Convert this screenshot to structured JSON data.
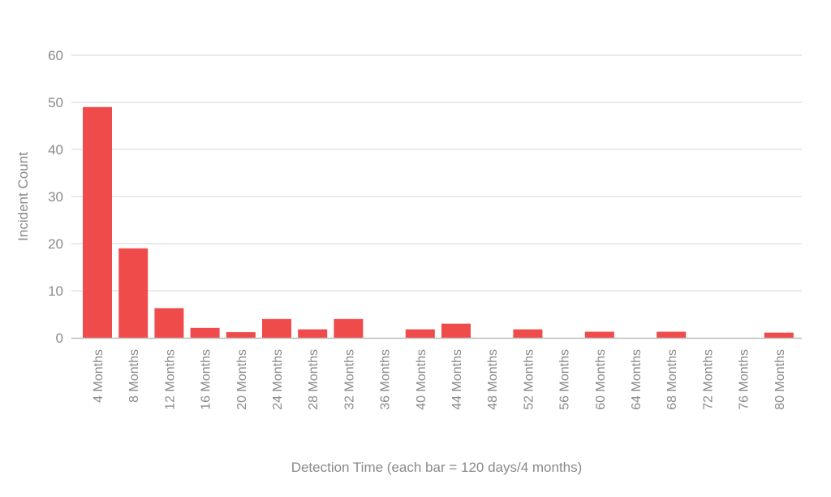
{
  "chart_data": {
    "type": "bar",
    "title": "",
    "xlabel": "Detection Time (each bar = 120 days/4 months)",
    "ylabel": "Incident Count",
    "categories": [
      "4 Months",
      "8 Months",
      "12 Months",
      "16 Months",
      "20 Months",
      "24 Months",
      "28 Months",
      "32 Months",
      "36 Months",
      "40 Months",
      "44 Months",
      "48 Months",
      "52 Months",
      "56 Months",
      "60 Months",
      "64 Months",
      "68 Months",
      "72 Months",
      "76 Months",
      "80 Months"
    ],
    "values": [
      49,
      19,
      6.3,
      2.1,
      1.2,
      4,
      1.8,
      4,
      0,
      1.8,
      3,
      0,
      1.8,
      0,
      1.3,
      0,
      1.3,
      0,
      0,
      1.1
    ],
    "ylim": [
      0,
      60
    ],
    "yticks": [
      0,
      10,
      20,
      30,
      40,
      50,
      60
    ],
    "grid": true,
    "legend": "none",
    "bar_color": "#f04b4b"
  }
}
